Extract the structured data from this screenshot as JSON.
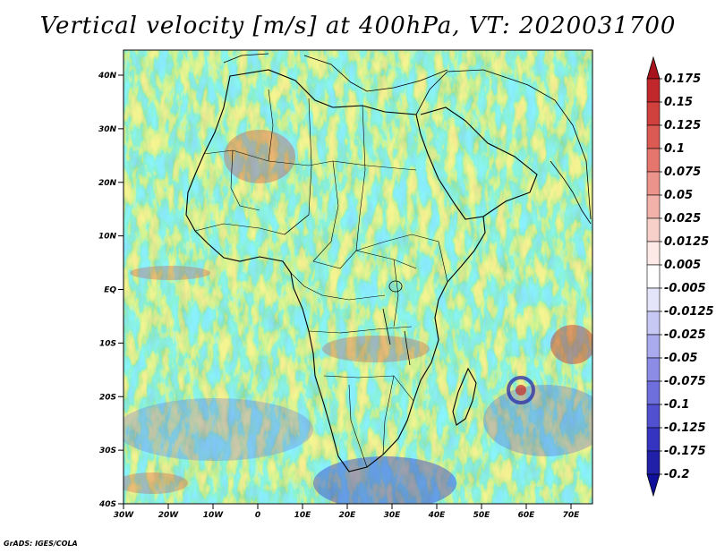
{
  "title": "Vertical velocity [m/s] at 400hPa, VT: 2020031700",
  "credit": "GrADS: IGES/COLA",
  "lon_labels": [
    "30W",
    "20W",
    "10W",
    "0",
    "10E",
    "20E",
    "30E",
    "40E",
    "50E",
    "60E",
    "70E"
  ],
  "lat_labels": [
    "40N",
    "30N",
    "20N",
    "10N",
    "EQ",
    "10S",
    "20S",
    "30S",
    "40S"
  ],
  "colorbar": {
    "labels": [
      "0.175",
      "0.15",
      "0.125",
      "0.1",
      "0.075",
      "0.05",
      "0.025",
      "0.0125",
      "0.005",
      "-0.005",
      "-0.0125",
      "-0.025",
      "-0.05",
      "-0.075",
      "-0.1",
      "-0.125",
      "-0.175",
      "-0.2"
    ],
    "colors": [
      "#a8141e",
      "#c0282c",
      "#d0403c",
      "#dc5a54",
      "#e4766e",
      "#ec948c",
      "#f2b2aa",
      "#f8d0ca",
      "#fdeae6",
      "#ffffff",
      "#e4e4fa",
      "#c8c8f4",
      "#aaaaee",
      "#8c8ce6",
      "#6e6edc",
      "#5050d0",
      "#3434c0",
      "#2020a8",
      "#10109a"
    ]
  },
  "map": {
    "ocean_color": "#e8e8f8",
    "land_outline_color": "#000000"
  }
}
